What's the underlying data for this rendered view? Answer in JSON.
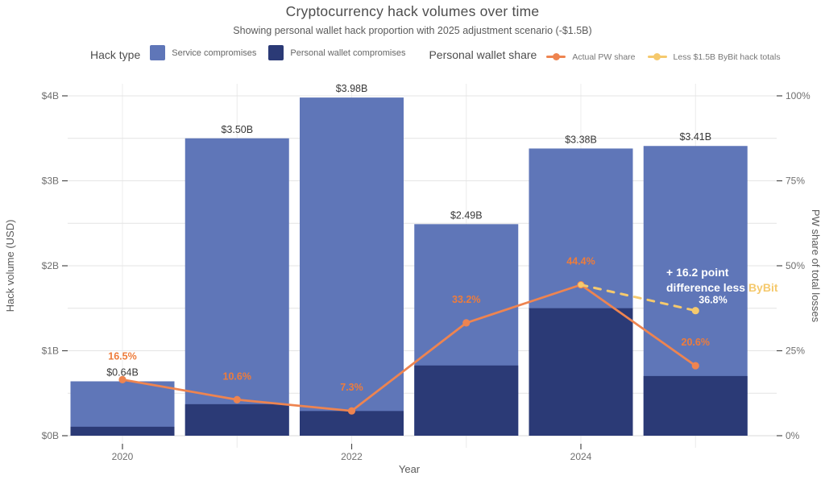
{
  "header": {
    "title": "Cryptocurrency hack volumes over time",
    "subtitle": "Showing personal wallet hack proportion with 2025 adjustment scenario (-$1.5B)"
  },
  "legend": {
    "hack_type_label": "Hack type",
    "bar_items": [
      {
        "label": "Service compromises",
        "color": "#5f76b8"
      },
      {
        "label": "Personal wallet compromises",
        "color": "#2b3a76"
      }
    ],
    "pw_share_label": "Personal wallet share",
    "line_items": [
      {
        "label": "Actual PW share",
        "color": "#ee8450"
      },
      {
        "label": "Less $1.5B ByBit hack totals",
        "color": "#f5c96d"
      }
    ]
  },
  "chart_data": {
    "type": "bar",
    "title": "Cryptocurrency hack volumes over time",
    "subtitle": "Showing personal wallet hack proportion with 2025 adjustment scenario (-$1.5B)",
    "x": [
      2020,
      2021,
      2022,
      2023,
      2024,
      2025
    ],
    "x_axis": {
      "label": "Year",
      "labeled_ticks": [
        2020,
        2022,
        2024
      ]
    },
    "left_axis": {
      "label": "Hack volume (USD)",
      "ticks": [
        "$0B",
        "$1B",
        "$2B",
        "$3B",
        "$4B"
      ],
      "range": [
        0,
        4
      ],
      "grid": true
    },
    "right_axis": {
      "label": "PW share of total losses",
      "ticks": [
        "0%",
        "25%",
        "50%",
        "75%",
        "100%"
      ],
      "range": [
        0,
        100
      ]
    },
    "bars": {
      "stack_series": [
        {
          "name": "Service compromises",
          "color": "#5f76b8"
        },
        {
          "name": "Personal wallet compromises",
          "color": "#2b3a76"
        }
      ],
      "totals_billions": [
        0.64,
        3.5,
        3.98,
        2.49,
        3.38,
        3.41
      ],
      "total_labels": [
        "$0.64B",
        "$3.50B",
        "$3.98B",
        "$2.49B",
        "$3.38B",
        "$3.41B"
      ]
    },
    "lines": [
      {
        "name": "Actual PW share",
        "style": "solid",
        "color": "#ee8450",
        "label_color": "#ee7c3b",
        "values_pct": [
          16.5,
          10.6,
          7.3,
          33.2,
          44.4,
          20.6
        ],
        "labels": [
          "16.5%",
          "10.6%",
          "7.3%",
          "33.2%",
          "44.4%",
          "20.6%"
        ]
      },
      {
        "name": "Less $1.5B ByBit hack totals",
        "style": "dashed",
        "color": "#f5c96d",
        "x": [
          2024,
          2025
        ],
        "values_pct": [
          44.4,
          36.8
        ],
        "point_label": "36.8%",
        "point_label_color": "#ffffff"
      }
    ],
    "annotation": {
      "line1": "+ 16.2 point",
      "line2_prefix": "difference less ",
      "line2_highlight": "ByBit",
      "text_color": "#ffffff",
      "highlight_color": "#f5c96d"
    },
    "colors": {
      "grid": "#e4e4e4",
      "axis_line": "#d9d9d9",
      "tick": "#4a4a4a",
      "tick_label": "#6f6f6f",
      "axis_title": "#5a5a5a",
      "bar_value_label": "#383838"
    }
  }
}
